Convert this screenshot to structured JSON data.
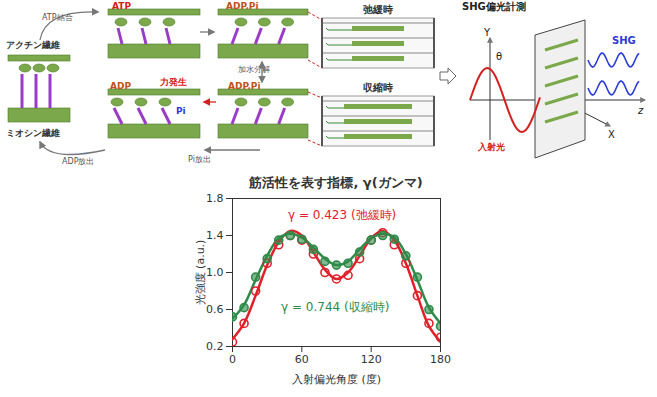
{
  "diagram": {
    "cycle": {
      "actin": "アクチン繊維",
      "myosin": "ミオシン繊維",
      "atp_binding": "ATP結合",
      "hydrolysis": "加水分解",
      "pi_release": "Pi放出",
      "adp_release": "ADP放出",
      "force": "力発生",
      "state_labels": {
        "atp": "ATP",
        "hydrolyzed": "ADP.Pi",
        "prepower": "ADP.Pi",
        "adp": "ADP",
        "pi": "Pi"
      }
    },
    "sarcomere": {
      "relaxed": "弛緩時",
      "contracted": "収縮時"
    },
    "shg": {
      "title": "SHG偏光計測",
      "y_axis": "Y",
      "x_axis": "X",
      "z_axis": "z",
      "angle": "θ",
      "signal": "SHG",
      "incident": "入射光"
    }
  },
  "chart_data": {
    "type": "line",
    "title": "筋活性を表す指標, γ(ガンマ)",
    "x_label": "入射偏光角度 (度)",
    "y_label": "光強度 (a.u.)",
    "x": [
      0,
      10,
      20,
      30,
      40,
      50,
      60,
      70,
      80,
      90,
      100,
      110,
      120,
      130,
      140,
      150,
      160,
      170,
      180
    ],
    "series": [
      {
        "type": "line",
        "color": "#e0202a",
        "line_style": "solid",
        "values": [
          0.28,
          0.45,
          0.75,
          1.08,
          1.33,
          1.45,
          1.4,
          1.22,
          1.03,
          0.93,
          1.0,
          1.18,
          1.37,
          1.45,
          1.35,
          1.1,
          0.75,
          0.42,
          0.25
        ]
      },
      {
        "type": "line",
        "color": "#2e8b4a",
        "line_style": "solid",
        "values": [
          0.5,
          0.65,
          0.92,
          1.18,
          1.37,
          1.42,
          1.38,
          1.27,
          1.15,
          1.08,
          1.12,
          1.25,
          1.37,
          1.42,
          1.38,
          1.2,
          0.92,
          0.62,
          0.45
        ]
      },
      {
        "type": "scatter",
        "color": "#e0202a",
        "marker": "open_circle",
        "values": [
          0.25,
          0.45,
          0.8,
          1.1,
          1.3,
          1.4,
          1.35,
          1.2,
          1.0,
          0.93,
          0.97,
          1.15,
          1.35,
          1.43,
          1.3,
          1.1,
          0.75,
          0.45,
          0.3
        ]
      },
      {
        "type": "scatter",
        "color": "#2e8b4a",
        "marker": "circle",
        "values": [
          0.52,
          0.62,
          0.95,
          1.15,
          1.35,
          1.4,
          1.36,
          1.25,
          1.12,
          1.08,
          1.1,
          1.22,
          1.35,
          1.4,
          1.36,
          1.18,
          0.95,
          0.6,
          0.42
        ]
      }
    ],
    "annotations": [
      {
        "text": "γ = 0.423 (弛緩時)",
        "x": 48,
        "y": 1.62,
        "color": "#e0202a"
      },
      {
        "text": "γ = 0.744 (収縮時)",
        "x": 42,
        "y": 0.62,
        "color": "#2e8b4a"
      }
    ],
    "xlim": [
      0,
      180
    ],
    "xticks": [
      0,
      60,
      120,
      180
    ],
    "ylim": [
      0.2,
      1.8
    ],
    "yticks": [
      0.2,
      0.6,
      {
        "value": 1.0,
        "label": "1.0"
      },
      1.4,
      1.8
    ],
    "grid": false
  }
}
